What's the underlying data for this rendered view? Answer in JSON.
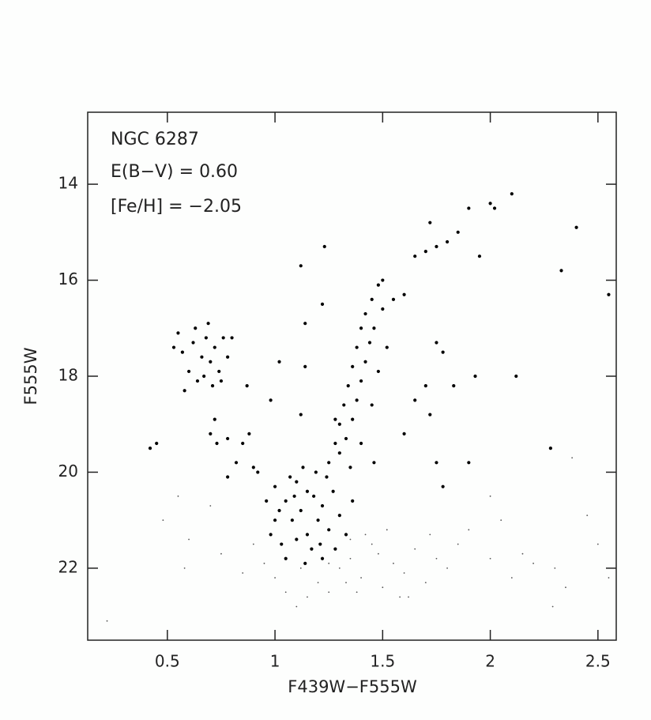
{
  "chart_data": {
    "type": "scatter",
    "annotations": [
      "NGC 6287",
      "E(B−V) = 0.60",
      "[Fe/H] = −2.05"
    ],
    "x_label": "F439W−F555W",
    "y_label": "F555W",
    "xlim": [
      0.13,
      2.585
    ],
    "ylim": [
      23.5,
      12.5
    ],
    "xticks": [
      0.5,
      1,
      1.5,
      2,
      2.5
    ],
    "yticks": [
      14,
      16,
      18,
      20,
      22
    ],
    "series": [
      {
        "color": "#000000",
        "size": 2.1,
        "x": [
          0.55,
          0.57,
          0.6,
          0.62,
          0.64,
          0.66,
          0.68,
          0.69,
          0.7,
          0.72,
          0.74,
          0.76,
          0.78,
          0.8,
          0.58,
          0.63,
          0.67,
          0.71,
          0.53,
          0.75,
          0.72,
          0.73,
          0.78,
          0.82,
          0.85,
          0.88,
          0.9,
          0.92,
          0.78,
          0.42,
          0.45,
          0.7,
          1.0,
          1.05,
          1.08,
          1.1,
          1.12,
          1.15,
          1.18,
          1.2,
          1.22,
          1.25,
          1.0,
          1.03,
          1.07,
          1.13,
          1.17,
          1.21,
          1.27,
          1.3,
          1.02,
          1.1,
          1.15,
          1.24,
          1.28,
          0.98,
          0.96,
          1.33,
          1.36,
          1.05,
          1.14,
          1.22,
          1.19,
          1.09,
          1.25,
          1.28,
          1.3,
          1.32,
          1.34,
          1.36,
          1.38,
          1.4,
          1.42,
          1.45,
          1.48,
          1.5,
          1.33,
          1.36,
          1.38,
          1.4,
          1.42,
          1.44,
          1.46,
          1.5,
          1.55,
          1.6,
          1.3,
          1.35,
          1.45,
          1.48,
          1.52,
          1.28,
          1.4,
          1.46,
          1.65,
          1.7,
          1.75,
          1.8,
          1.85,
          1.9,
          2.0,
          2.02,
          2.1,
          1.95,
          1.72,
          1.23,
          1.12,
          1.14,
          1.22,
          1.14,
          1.02,
          0.87,
          0.98,
          1.7,
          1.72,
          1.78,
          1.83,
          1.93,
          2.12,
          1.9,
          2.28,
          2.33,
          2.4,
          2.55,
          1.75,
          1.78,
          1.6,
          1.65,
          1.75,
          1.12
        ],
        "values": [
          17.1,
          17.5,
          17.9,
          17.3,
          18.1,
          17.6,
          17.2,
          16.9,
          17.7,
          17.4,
          17.9,
          17.2,
          17.6,
          17.2,
          18.3,
          17.0,
          18.0,
          18.2,
          17.4,
          18.1,
          18.9,
          19.4,
          19.3,
          19.8,
          19.4,
          19.2,
          19.9,
          20.0,
          20.1,
          19.5,
          19.4,
          19.2,
          20.3,
          20.6,
          21.0,
          20.2,
          20.8,
          21.3,
          20.5,
          21.0,
          20.7,
          21.2,
          21.0,
          21.5,
          20.1,
          19.9,
          21.6,
          21.5,
          20.4,
          20.9,
          20.8,
          21.4,
          20.4,
          20.1,
          21.6,
          21.3,
          20.6,
          21.3,
          20.6,
          21.8,
          21.9,
          21.8,
          20.0,
          20.5,
          19.8,
          19.4,
          19.0,
          18.6,
          18.2,
          17.8,
          17.4,
          17.0,
          16.7,
          16.4,
          16.1,
          16.0,
          19.3,
          18.9,
          18.5,
          18.1,
          17.7,
          17.3,
          17.0,
          16.6,
          16.4,
          16.3,
          19.6,
          19.9,
          18.6,
          17.9,
          17.4,
          18.9,
          19.4,
          19.8,
          15.5,
          15.4,
          15.3,
          15.2,
          15.0,
          14.5,
          14.4,
          14.5,
          14.2,
          15.5,
          14.8,
          15.3,
          15.7,
          16.9,
          16.5,
          17.8,
          17.7,
          18.2,
          18.5,
          18.2,
          18.8,
          17.5,
          18.2,
          18.0,
          18.0,
          19.8,
          19.5,
          15.8,
          14.9,
          16.3,
          19.8,
          20.3,
          19.2,
          18.5,
          17.3,
          18.8
        ]
      },
      {
        "color": "#555555",
        "size": 0.9,
        "x": [
          1.3,
          1.35,
          1.4,
          1.45,
          1.5,
          1.55,
          1.6,
          1.65,
          1.7,
          1.75,
          1.8,
          1.85,
          1.9,
          2.0,
          2.1,
          2.2,
          2.3,
          2.5,
          2.45,
          2.38,
          1.0,
          1.05,
          1.15,
          1.2,
          1.25,
          0.95,
          0.9,
          0.85,
          0.75,
          0.7,
          0.6,
          0.58,
          0.55,
          0.48,
          0.22,
          1.1,
          1.38,
          1.58,
          1.42,
          1.52,
          1.62,
          1.72,
          2.0,
          2.05,
          2.15,
          2.35,
          2.55,
          2.29,
          1.33,
          1.48,
          1.12,
          1.25,
          1.35
        ],
        "values": [
          22.0,
          21.8,
          22.2,
          21.5,
          22.4,
          21.9,
          22.1,
          21.6,
          22.3,
          21.8,
          22.0,
          21.5,
          21.2,
          21.8,
          22.2,
          21.9,
          22.0,
          21.5,
          20.9,
          19.7,
          22.2,
          22.5,
          22.6,
          22.3,
          22.5,
          21.9,
          21.5,
          22.1,
          21.7,
          20.7,
          21.4,
          22.0,
          20.5,
          21.0,
          23.1,
          22.8,
          22.5,
          22.6,
          21.3,
          21.2,
          22.6,
          21.3,
          20.5,
          21.0,
          21.7,
          22.4,
          22.2,
          22.8,
          22.3,
          21.7,
          22.0,
          21.9,
          21.4
        ]
      }
    ]
  }
}
